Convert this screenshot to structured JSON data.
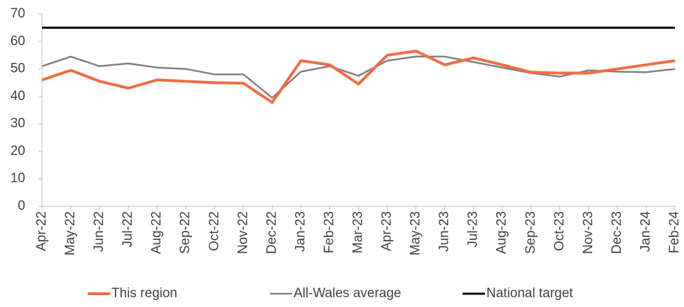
{
  "chart_data": {
    "type": "line",
    "categories": [
      "Apr-22",
      "May-22",
      "Jun-22",
      "Jul-22",
      "Aug-22",
      "Sep-22",
      "Oct-22",
      "Nov-22",
      "Dec-22",
      "Jan-23",
      "Feb-23",
      "Mar-23",
      "Apr-23",
      "May-23",
      "Jun-23",
      "Jul-23",
      "Aug-23",
      "Sep-23",
      "Oct-23",
      "Nov-23",
      "Dec-23",
      "Jan-24",
      "Feb-24"
    ],
    "series": [
      {
        "name": "This region",
        "color": "#f26b43",
        "values": [
          46,
          49.5,
          45.5,
          43,
          46,
          45.5,
          45,
          44.8,
          37.8,
          53,
          51.5,
          44.5,
          55,
          56.5,
          51.5,
          54,
          51.5,
          48.8,
          48.5,
          48.5,
          50,
          51.5,
          53
        ]
      },
      {
        "name": "All-Wales average",
        "color": "#808080",
        "values": [
          51,
          54.5,
          51,
          52,
          50.5,
          50,
          48,
          48,
          39.5,
          49,
          51,
          47.5,
          53,
          54.5,
          54.5,
          52.5,
          50.5,
          48.5,
          47.2,
          49.5,
          49,
          48.8,
          50
        ]
      },
      {
        "name": "National target",
        "color": "#000000",
        "values": [
          65,
          65,
          65,
          65,
          65,
          65,
          65,
          65,
          65,
          65,
          65,
          65,
          65,
          65,
          65,
          65,
          65,
          65,
          65,
          65,
          65,
          65,
          65
        ]
      }
    ],
    "ylim": [
      0,
      70
    ],
    "yticks": [
      0,
      10,
      20,
      30,
      40,
      50,
      60,
      70
    ],
    "grid": false
  }
}
